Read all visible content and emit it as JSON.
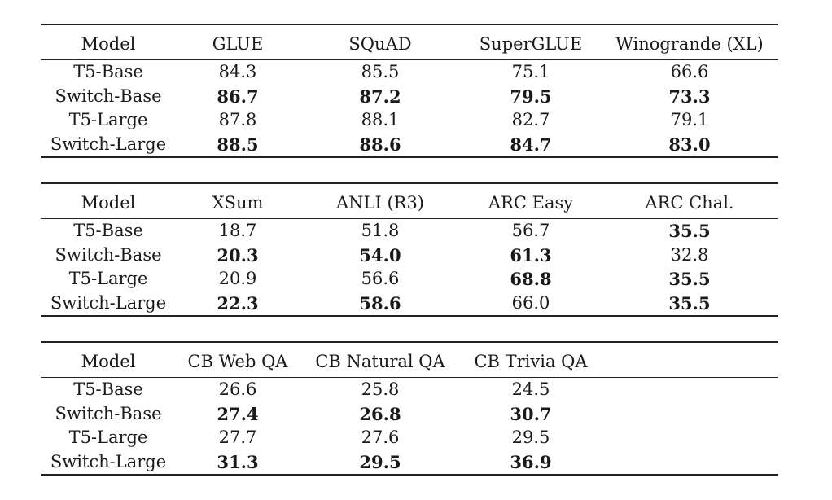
{
  "tables": [
    {
      "headers": [
        "Model",
        "GLUE",
        "SQuAD",
        "SuperGLUE",
        "Winogrande (XL)"
      ],
      "rows": [
        {
          "model": "T5-Base",
          "values": [
            "84.3",
            "85.5",
            "75.1",
            "66.6"
          ],
          "bold": [
            false,
            false,
            false,
            false
          ]
        },
        {
          "model": "Switch-Base",
          "values": [
            "86.7",
            "87.2",
            "79.5",
            "73.3"
          ],
          "bold": [
            true,
            true,
            true,
            true
          ]
        },
        {
          "model": "T5-Large",
          "values": [
            "87.8",
            "88.1",
            "82.7",
            "79.1"
          ],
          "bold": [
            false,
            false,
            false,
            false
          ]
        },
        {
          "model": "Switch-Large",
          "values": [
            "88.5",
            "88.6",
            "84.7",
            "83.0"
          ],
          "bold": [
            true,
            true,
            true,
            true
          ]
        }
      ]
    },
    {
      "headers": [
        "Model",
        "XSum",
        "ANLI (R3)",
        "ARC Easy",
        "ARC Chal."
      ],
      "rows": [
        {
          "model": "T5-Base",
          "values": [
            "18.7",
            "51.8",
            "56.7",
            "35.5"
          ],
          "bold": [
            false,
            false,
            false,
            true
          ]
        },
        {
          "model": "Switch-Base",
          "values": [
            "20.3",
            "54.0",
            "61.3",
            "32.8"
          ],
          "bold": [
            true,
            true,
            true,
            false
          ]
        },
        {
          "model": "T5-Large",
          "values": [
            "20.9",
            "56.6",
            "68.8",
            "35.5"
          ],
          "bold": [
            false,
            false,
            true,
            true
          ]
        },
        {
          "model": "Switch-Large",
          "values": [
            "22.3",
            "58.6",
            "66.0",
            "35.5"
          ],
          "bold": [
            true,
            true,
            false,
            true
          ]
        }
      ]
    },
    {
      "headers": [
        "Model",
        "CB Web QA",
        "CB Natural QA",
        "CB Trivia QA",
        ""
      ],
      "rows": [
        {
          "model": "T5-Base",
          "values": [
            "26.6",
            "25.8",
            "24.5",
            ""
          ],
          "bold": [
            false,
            false,
            false,
            false
          ]
        },
        {
          "model": "Switch-Base",
          "values": [
            "27.4",
            "26.8",
            "30.7",
            ""
          ],
          "bold": [
            true,
            true,
            true,
            false
          ]
        },
        {
          "model": "T5-Large",
          "values": [
            "27.7",
            "27.6",
            "29.5",
            ""
          ],
          "bold": [
            false,
            false,
            false,
            false
          ]
        },
        {
          "model": "Switch-Large",
          "values": [
            "31.3",
            "29.5",
            "36.9",
            ""
          ],
          "bold": [
            true,
            true,
            true,
            false
          ]
        }
      ]
    }
  ]
}
